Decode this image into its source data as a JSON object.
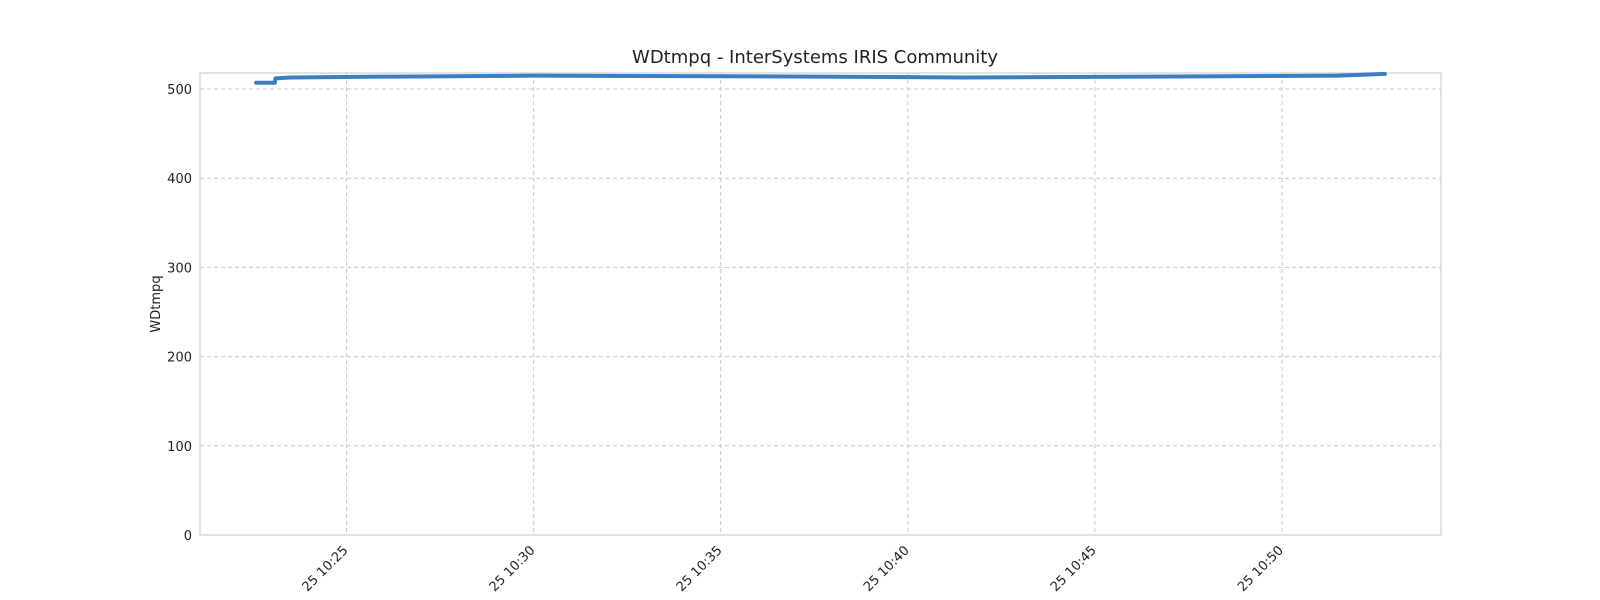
{
  "chart_data": {
    "type": "line",
    "title": "WDtmpq - InterSystems IRIS Community",
    "xlabel": "",
    "ylabel": "WDtmpq",
    "x_type": "time",
    "xlim": [
      "10:21:05",
      "10:54:15"
    ],
    "ylim": [
      0,
      518
    ],
    "y_ticks": [
      0,
      100,
      200,
      300,
      400,
      500
    ],
    "x_ticks": [
      "10:25",
      "10:30",
      "10:35",
      "10:40",
      "10:45",
      "10:50"
    ],
    "x_tick_labels": [
      "25 10:25",
      "25 10:30",
      "25 10:35",
      "25 10:40",
      "25 10:45",
      "25 10:50"
    ],
    "grid": true,
    "line_color": "#3a7ebf",
    "series": [
      {
        "x": [
          "10:22:35",
          "10:23:05",
          "10:23:06",
          "10:23:30",
          "10:26:15",
          "10:30:00",
          "10:37:30",
          "10:41:30",
          "10:46:30",
          "10:51:30",
          "10:52:45"
        ],
        "y": [
          507,
          507,
          512,
          513,
          514,
          515,
          514,
          513,
          514,
          515,
          517
        ]
      }
    ]
  }
}
